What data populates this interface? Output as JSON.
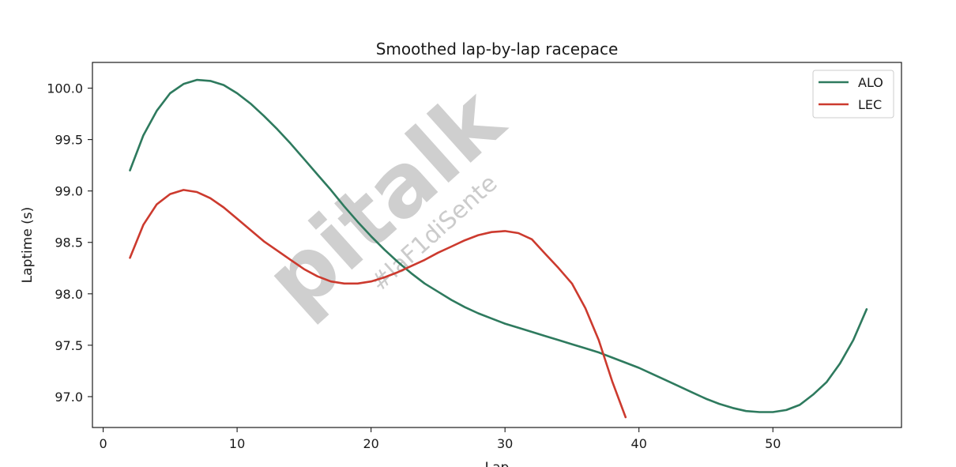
{
  "chart_data": {
    "type": "line",
    "title": "Smoothed lap-by-lap racepace",
    "xlabel": "Lap",
    "ylabel": "Laptime (s)",
    "xlim": [
      -0.8,
      59.6
    ],
    "ylim": [
      96.7,
      100.25
    ],
    "xticks": [
      0,
      10,
      20,
      30,
      40,
      50
    ],
    "yticks": [
      97.0,
      97.5,
      98.0,
      98.5,
      99.0,
      99.5,
      100.0
    ],
    "ytick_labels": [
      "97.0",
      "97.5",
      "98.0",
      "98.5",
      "99.0",
      "99.5",
      "100.0"
    ],
    "grid": false,
    "legend_position": "top-right",
    "series": [
      {
        "name": "ALO",
        "color": "#2e7a5e",
        "x": [
          2,
          3,
          4,
          5,
          6,
          7,
          8,
          9,
          10,
          11,
          12,
          13,
          14,
          15,
          16,
          17,
          18,
          19,
          20,
          21,
          22,
          23,
          24,
          25,
          26,
          27,
          28,
          29,
          30,
          31,
          32,
          33,
          34,
          35,
          36,
          37,
          38,
          39,
          40,
          41,
          42,
          43,
          44,
          45,
          46,
          47,
          48,
          49,
          50,
          51,
          52,
          53,
          54,
          55,
          56,
          57
        ],
        "y": [
          99.2,
          99.54,
          99.78,
          99.95,
          100.04,
          100.08,
          100.07,
          100.03,
          99.95,
          99.85,
          99.73,
          99.6,
          99.46,
          99.31,
          99.16,
          99.01,
          98.85,
          98.7,
          98.56,
          98.43,
          98.31,
          98.2,
          98.1,
          98.02,
          97.94,
          97.87,
          97.81,
          97.76,
          97.71,
          97.67,
          97.63,
          97.59,
          97.55,
          97.51,
          97.47,
          97.43,
          97.38,
          97.33,
          97.28,
          97.22,
          97.16,
          97.1,
          97.04,
          96.98,
          96.93,
          96.89,
          96.86,
          96.85,
          96.85,
          96.87,
          96.92,
          97.02,
          97.14,
          97.32,
          97.55,
          97.85
        ]
      },
      {
        "name": "LEC",
        "color": "#cc3a2e",
        "x": [
          2,
          3,
          4,
          5,
          6,
          7,
          8,
          9,
          10,
          11,
          12,
          13,
          14,
          15,
          16,
          17,
          18,
          19,
          20,
          21,
          22,
          23,
          24,
          25,
          26,
          27,
          28,
          29,
          30,
          31,
          32,
          33,
          34,
          35,
          36,
          37,
          38,
          39
        ],
        "y": [
          98.35,
          98.67,
          98.87,
          98.97,
          99.01,
          98.99,
          98.93,
          98.84,
          98.73,
          98.62,
          98.51,
          98.42,
          98.33,
          98.24,
          98.17,
          98.12,
          98.1,
          98.1,
          98.12,
          98.16,
          98.21,
          98.27,
          98.33,
          98.4,
          98.46,
          98.52,
          98.57,
          98.6,
          98.61,
          98.59,
          98.53,
          98.39,
          98.25,
          98.1,
          97.86,
          97.55,
          97.15,
          96.8
        ]
      }
    ]
  },
  "watermark": {
    "brand": "pitalk",
    "tagline": "#laF1diSente"
  }
}
